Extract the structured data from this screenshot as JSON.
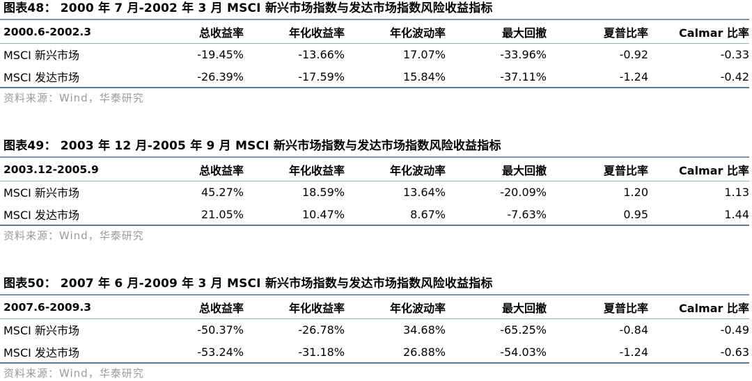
{
  "tables": [
    {
      "title": "图表48： 2000 年 7 月-2002 年 3 月 MSCI 新兴市场指数与发达市场指数风险收益指标",
      "period": "2000.6-2002.3",
      "columns": [
        "总收益率",
        "年化收益率",
        "年化波动率",
        "最大回撤",
        "夏普比率",
        "Calmar 比率"
      ],
      "rows": [
        {
          "name": "MSCI 新兴市场",
          "values": [
            "-19.45%",
            "-13.66%",
            "17.07%",
            "-33.96%",
            "-0.92",
            "-0.33"
          ]
        },
        {
          "name": "MSCI 发达市场",
          "values": [
            "-26.39%",
            "-17.59%",
            "15.84%",
            "-37.11%",
            "-1.24",
            "-0.42"
          ]
        }
      ],
      "source": "资料来源：Wind，华泰研究"
    },
    {
      "title": "图表49： 2003 年 12 月-2005 年 9 月 MSCI 新兴市场指数与发达市场指数风险收益指标",
      "period": "2003.12-2005.9",
      "columns": [
        "总收益率",
        "年化收益率",
        "年化波动率",
        "最大回撤",
        "夏普比率",
        "Calmar 比率"
      ],
      "rows": [
        {
          "name": "MSCI 新兴市场",
          "values": [
            "45.27%",
            "18.59%",
            "13.64%",
            "-20.09%",
            "1.20",
            "1.13"
          ]
        },
        {
          "name": "MSCI 发达市场",
          "values": [
            "21.05%",
            "10.47%",
            "8.67%",
            "-7.63%",
            "0.95",
            "1.44"
          ]
        }
      ],
      "source": "资料来源：Wind，华泰研究"
    },
    {
      "title": "图表50： 2007 年 6 月-2009 年 3 月 MSCI 新兴市场指数与发达市场指数风险收益指标",
      "period": "2007.6-2009.3",
      "columns": [
        "总收益率",
        "年化收益率",
        "年化波动率",
        "最大回撤",
        "夏普比率",
        "Calmar 比率"
      ],
      "rows": [
        {
          "name": "MSCI 新兴市场",
          "values": [
            "-50.37%",
            "-26.78%",
            "34.68%",
            "-65.25%",
            "-0.84",
            "-0.49"
          ]
        },
        {
          "name": "MSCI 发达市场",
          "values": [
            "-53.24%",
            "-31.18%",
            "26.88%",
            "-54.03%",
            "-1.24",
            "-0.63"
          ]
        }
      ],
      "source": "资料来源：Wind，华泰研究"
    }
  ]
}
